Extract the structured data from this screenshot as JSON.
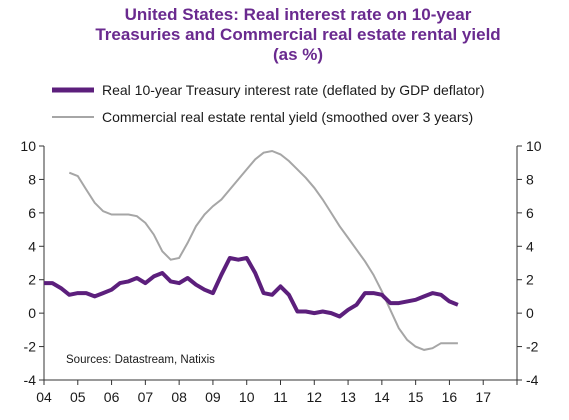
{
  "chart_data": {
    "type": "line",
    "title": [
      "United States: Real interest rate on 10-year",
      "Treasuries and Commercial real estate rental yield",
      "(as %)"
    ],
    "source": "Sources: Datastream, Natixis",
    "x_tick_labels": [
      "04",
      "05",
      "06",
      "07",
      "08",
      "09",
      "10",
      "11",
      "12",
      "13",
      "14",
      "15",
      "16",
      "17"
    ],
    "x_range": [
      2004,
      2018
    ],
    "y_left": {
      "ticks": [
        -4,
        -2,
        0,
        2,
        4,
        6,
        8,
        10
      ],
      "range": [
        -4,
        10
      ]
    },
    "y_right": {
      "ticks": [
        -4,
        -2,
        0,
        2,
        4,
        6,
        8,
        10
      ],
      "range": [
        -4,
        10
      ]
    },
    "grid": false,
    "legend_placement": "top",
    "colors": {
      "treasury": "#5c1f7c",
      "rental": "#a6a6a6",
      "title": "#6a2a8f"
    },
    "series": [
      {
        "name": "Real 10-year Treasury interest rate (deflated by GDP deflator)",
        "color": "#5c1f7c",
        "x": [
          2004.0,
          2004.25,
          2004.5,
          2004.75,
          2005.0,
          2005.25,
          2005.5,
          2005.75,
          2006.0,
          2006.25,
          2006.5,
          2006.75,
          2007.0,
          2007.25,
          2007.5,
          2007.75,
          2008.0,
          2008.25,
          2008.5,
          2008.75,
          2009.0,
          2009.25,
          2009.5,
          2009.75,
          2010.0,
          2010.25,
          2010.5,
          2010.75,
          2011.0,
          2011.25,
          2011.5,
          2011.75,
          2012.0,
          2012.25,
          2012.5,
          2012.75,
          2013.0,
          2013.25,
          2013.5,
          2013.75,
          2014.0,
          2014.25,
          2014.5,
          2014.75,
          2015.0,
          2015.25,
          2015.5,
          2015.75,
          2016.0,
          2016.25
        ],
        "y": [
          1.8,
          1.8,
          1.5,
          1.1,
          1.2,
          1.2,
          1.0,
          1.2,
          1.4,
          1.8,
          1.9,
          2.1,
          1.8,
          2.2,
          2.4,
          1.9,
          1.8,
          2.1,
          1.7,
          1.4,
          1.2,
          2.3,
          3.3,
          3.2,
          3.3,
          2.4,
          1.2,
          1.1,
          1.6,
          1.1,
          0.1,
          0.1,
          0.0,
          0.1,
          0.0,
          -0.2,
          0.2,
          0.5,
          1.2,
          1.2,
          1.1,
          0.6,
          0.6,
          0.7,
          0.8,
          1.0,
          1.2,
          1.1,
          0.7,
          0.5
        ]
      },
      {
        "name": "Commercial real estate rental yield (smoothed over 3 years)",
        "color": "#a6a6a6",
        "x": [
          2004.75,
          2005.0,
          2005.25,
          2005.5,
          2005.75,
          2006.0,
          2006.25,
          2006.5,
          2006.75,
          2007.0,
          2007.25,
          2007.5,
          2007.75,
          2008.0,
          2008.25,
          2008.5,
          2008.75,
          2009.0,
          2009.25,
          2009.5,
          2009.75,
          2010.0,
          2010.25,
          2010.5,
          2010.75,
          2011.0,
          2011.25,
          2011.5,
          2011.75,
          2012.0,
          2012.25,
          2012.5,
          2012.75,
          2013.0,
          2013.25,
          2013.5,
          2013.75,
          2014.0,
          2014.25,
          2014.5,
          2014.75,
          2015.0,
          2015.25,
          2015.5,
          2015.75,
          2016.0,
          2016.25
        ],
        "y": [
          8.4,
          8.2,
          7.4,
          6.6,
          6.1,
          5.9,
          5.9,
          5.9,
          5.8,
          5.4,
          4.7,
          3.7,
          3.2,
          3.3,
          4.2,
          5.2,
          5.9,
          6.4,
          6.8,
          7.4,
          8.0,
          8.6,
          9.2,
          9.6,
          9.7,
          9.5,
          9.1,
          8.6,
          8.1,
          7.5,
          6.8,
          6.0,
          5.2,
          4.5,
          3.8,
          3.1,
          2.3,
          1.3,
          0.2,
          -0.9,
          -1.6,
          -2.0,
          -2.2,
          -2.1,
          -1.8,
          -1.8,
          -1.8
        ]
      }
    ]
  }
}
